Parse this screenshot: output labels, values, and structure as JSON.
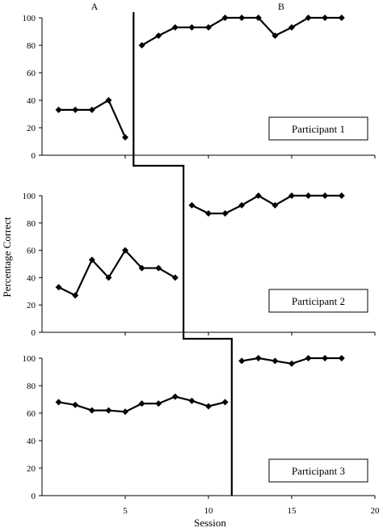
{
  "chart_data": {
    "type": "line",
    "phase_labels": [
      "A",
      "B"
    ],
    "xlabel": "Session",
    "ylabel": "Percentage Correct",
    "xlim": [
      0,
      20
    ],
    "xticks": [
      5,
      10,
      15,
      20
    ],
    "ylim": [
      0,
      100
    ],
    "yticks": [
      0,
      20,
      40,
      60,
      80,
      100
    ],
    "grid": false,
    "panels": [
      {
        "label": "Participant 1",
        "phase_change_after_session": 5.5,
        "baseline": {
          "x": [
            1,
            2,
            3,
            4,
            5
          ],
          "y": [
            33,
            33,
            33,
            40,
            13
          ]
        },
        "intervention": {
          "x": [
            6,
            7,
            8,
            9,
            10,
            11,
            12,
            13,
            14,
            15,
            16,
            17,
            18
          ],
          "y": [
            80,
            87,
            93,
            93,
            93,
            100,
            100,
            100,
            87,
            93,
            100,
            100,
            100
          ]
        }
      },
      {
        "label": "Participant 2",
        "phase_change_after_session": 8.5,
        "baseline": {
          "x": [
            1,
            2,
            3,
            4,
            5,
            6,
            7,
            8
          ],
          "y": [
            33,
            27,
            53,
            40,
            60,
            47,
            47,
            40
          ]
        },
        "intervention": {
          "x": [
            9,
            10,
            11,
            12,
            13,
            14,
            15,
            16,
            17,
            18
          ],
          "y": [
            93,
            87,
            87,
            93,
            100,
            93,
            100,
            100,
            100,
            100
          ]
        }
      },
      {
        "label": "Participant 3",
        "phase_change_after_session": 11.4,
        "baseline": {
          "x": [
            1,
            2,
            3,
            4,
            5,
            6,
            7,
            8,
            9,
            10,
            11
          ],
          "y": [
            68,
            66,
            62,
            62,
            61,
            67,
            67,
            72,
            69,
            65,
            68
          ]
        },
        "intervention": {
          "x": [
            12,
            13,
            14,
            15,
            16,
            17,
            18
          ],
          "y": [
            98,
            100,
            98,
            96,
            100,
            100,
            100
          ]
        }
      }
    ]
  }
}
